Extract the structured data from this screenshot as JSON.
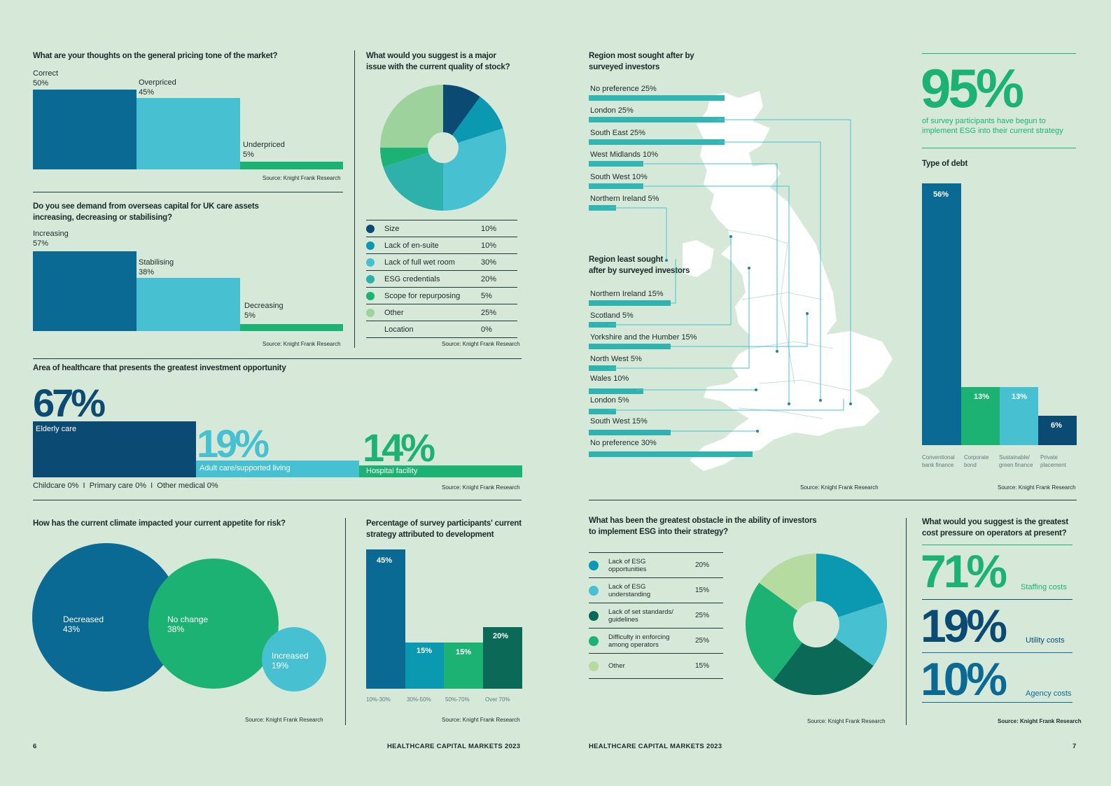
{
  "footer": {
    "left_page": "6",
    "left_title": "HEALTHCARE CAPITAL MARKETS 2023",
    "right_title": "HEALTHCARE CAPITAL MARKETS 2023",
    "right_page": "7"
  },
  "source": "Source: Knight Frank Research",
  "colors": {
    "background": "#d6e9d8",
    "dark_teal": "#0a6a94",
    "navy": "#0b4a72",
    "light_blue": "#47c1d1",
    "green": "#1cb273"
  },
  "chart_data": [
    {
      "id": "pricing",
      "type": "bar",
      "title": "What are your thoughts on the general pricing tone of the market?",
      "categories": [
        "Correct",
        "Overpriced",
        "Underpriced"
      ],
      "values": [
        50,
        45,
        5
      ],
      "unit": "%"
    },
    {
      "id": "overseas",
      "type": "bar",
      "title": "Do you see demand from overseas capital for UK care assets increasing, decreasing or stabilising?",
      "categories": [
        "Increasing",
        "Stabilising",
        "Decreasing"
      ],
      "values": [
        57,
        38,
        5
      ],
      "unit": "%"
    },
    {
      "id": "stock",
      "type": "pie",
      "title": "What would you suggest is a major issue with the current quality of stock?",
      "categories": [
        "Size",
        "Lack of en-suite",
        "Lack of full wet room",
        "ESG credentials",
        "Scope for repurposing",
        "Other",
        "Location"
      ],
      "values": [
        10,
        10,
        30,
        20,
        5,
        25,
        0
      ],
      "unit": "%"
    },
    {
      "id": "healthcare",
      "type": "bar",
      "title": "Area of healthcare that presents the greatest investment opportunity",
      "categories": [
        "Elderly care",
        "Adult care/supported living",
        "Hospital facility"
      ],
      "values": [
        67,
        19,
        14
      ],
      "unit": "%",
      "annotation": "Childcare 0%  |  Primary care 0%  |  Other medical 0%"
    },
    {
      "id": "risk",
      "type": "bubble",
      "title": "How has the current climate impacted your current appetite for risk?",
      "categories": [
        "Decreased",
        "No change",
        "Increased"
      ],
      "values": [
        43,
        38,
        19
      ],
      "unit": "%"
    },
    {
      "id": "development",
      "type": "bar",
      "title": "Percentage of survey participants' current strategy attributed to development",
      "categories": [
        "10%-30%",
        "30%-50%",
        "50%-70%",
        "Over 70%"
      ],
      "values": [
        45,
        15,
        15,
        20
      ],
      "unit": "%"
    },
    {
      "id": "region_most",
      "type": "bar",
      "title": "Region most sought after by surveyed investors",
      "categories": [
        "No preference",
        "London",
        "South East",
        "West Midlands",
        "South West",
        "Northern Ireland"
      ],
      "values": [
        25,
        25,
        25,
        10,
        10,
        5
      ],
      "unit": "%"
    },
    {
      "id": "region_least",
      "type": "bar",
      "title": "Region least sought after by surveyed investors",
      "categories": [
        "Northern Ireland",
        "Scotland",
        "Yorkshire and the Humber",
        "North West",
        "Wales",
        "London",
        "South West",
        "No preference"
      ],
      "values": [
        15,
        5,
        15,
        5,
        10,
        5,
        15,
        30
      ],
      "unit": "%"
    },
    {
      "id": "esg_headline",
      "type": "stat",
      "value": 95,
      "unit": "%",
      "caption": "of survey participants have begun to implement ESG into their current strategy"
    },
    {
      "id": "debt",
      "type": "bar",
      "title": "Type of debt",
      "categories": [
        "Conventional bank finance",
        "Corporate bond",
        "Sustainable/ green finance",
        "Private placement"
      ],
      "values": [
        56,
        13,
        13,
        6
      ],
      "unit": "%"
    },
    {
      "id": "esg_obstacle",
      "type": "pie",
      "title": "What has been the greatest obstacle in the ability of investors to implement ESG into their strategy?",
      "categories": [
        "Lack of ESG opportunities",
        "Lack of ESG understanding",
        "Lack of set standards/ guidelines",
        "Difficulty in enforcing among operators",
        "Other"
      ],
      "values": [
        20,
        15,
        25,
        25,
        15
      ],
      "unit": "%"
    },
    {
      "id": "cost",
      "type": "stat",
      "title": "What would you suggest is the greatest cost pressure on operators at present?",
      "categories": [
        "Staffing costs",
        "Utility costs",
        "Agency costs"
      ],
      "values": [
        71,
        19,
        10
      ],
      "unit": "%"
    }
  ],
  "text": {
    "pricing": {
      "title": "What are your thoughts on the general pricing tone of the market?",
      "l1": "Correct",
      "v1": "50%",
      "l2": "Overpriced",
      "v2": "45%",
      "l3": "Underpriced",
      "v3": "5%"
    },
    "overseas": {
      "title1": "Do you see demand from overseas capital for UK care assets",
      "title2": "increasing, decreasing or stabilising?",
      "l1": "Increasing",
      "v1": "57%",
      "l2": "Stabilising",
      "v2": "38%",
      "l3": "Decreasing",
      "v3": "5%"
    },
    "stock": {
      "title1": "What would you suggest is a major",
      "title2": "issue with the current quality of stock?",
      "rows": [
        {
          "label": "Size",
          "value": "10%"
        },
        {
          "label": "Lack of en-suite",
          "value": "10%"
        },
        {
          "label": "Lack of full wet room",
          "value": "30%"
        },
        {
          "label": "ESG credentials",
          "value": "20%"
        },
        {
          "label": "Scope for repurposing",
          "value": "5%"
        },
        {
          "label": "Other",
          "value": "25%"
        },
        {
          "label": "Location",
          "value": "0%"
        }
      ]
    },
    "healthcare": {
      "title": "Area of healthcare that presents the greatest investment opportunity",
      "v1": "67%",
      "l1": "Elderly care",
      "v2": "19%",
      "l2": "Adult care/supported living",
      "v3": "14%",
      "l3": "Hospital facility",
      "note": "Childcare 0%  I  Primary care 0%  I  Other medical 0%"
    },
    "risk": {
      "title": "How has the current climate impacted your current appetite for risk?",
      "l1": "Decreased",
      "v1": "43%",
      "l2": "No change",
      "v2": "38%",
      "l3": "Increased",
      "v3": "19%"
    },
    "development": {
      "title1": "Percentage of survey participants' current",
      "title2": "strategy attributed to development",
      "v1": "45%",
      "v2": "15%",
      "v3": "15%",
      "v4": "20%",
      "x1": "10%-30%",
      "x2": "30%-50%",
      "x3": "50%-70%",
      "x4": "Over 70%"
    },
    "region": {
      "most1": "Region most sought after by",
      "most2": "surveyed investors",
      "least1": "Region least sought",
      "least2": "after by surveyed investors",
      "most": [
        "No preference 25%",
        "London 25%",
        "South East 25%",
        "West Midlands 10%",
        "South West 10%",
        "Northern Ireland 5%"
      ],
      "least": [
        "Northern Ireland 15%",
        "Scotland 5%",
        "Yorkshire and the Humber 15%",
        "North West 5%",
        "Wales 10%",
        "London 5%",
        "South West 15%",
        "No preference 30%"
      ]
    },
    "esg": {
      "big": "95%",
      "cap1": "of survey participants have begun to",
      "cap2": "implement ESG into their current strategy"
    },
    "debt": {
      "title": "Type of debt",
      "v1": "56%",
      "v2": "13%",
      "v3": "13%",
      "v4": "6%",
      "x1a": "Conventional",
      "x1b": "bank finance",
      "x2a": "Corporate",
      "x2b": "bond",
      "x3a": "Sustainable/",
      "x3b": "green finance",
      "x4a": "Private",
      "x4b": "placement"
    },
    "obstacle": {
      "title1": "What has been the greatest obstacle in the ability of investors",
      "title2": "to implement ESG into their strategy?",
      "rows": [
        {
          "l1": "Lack of ESG",
          "l2": "opportunities",
          "value": "20%"
        },
        {
          "l1": "Lack of ESG",
          "l2": "understanding",
          "value": "15%"
        },
        {
          "l1": "Lack of set standards/",
          "l2": "guidelines",
          "value": "25%"
        },
        {
          "l1": "Difficulty in enforcing",
          "l2": "among operators",
          "value": "25%"
        },
        {
          "l1": "Other",
          "l2": "",
          "value": "15%"
        }
      ]
    },
    "cost": {
      "title1": "What would you suggest is the greatest",
      "title2": "cost pressure on operators at present?",
      "v1": "71%",
      "l1": "Staffing costs",
      "v2": "19%",
      "l2": "Utility costs",
      "v3": "10%",
      "l3": "Agency costs"
    }
  }
}
